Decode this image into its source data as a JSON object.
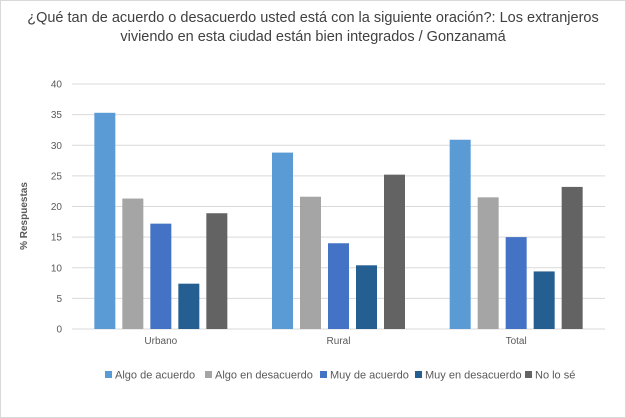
{
  "chart_data": {
    "type": "bar",
    "title": "¿Qué tan de acuerdo o desacuerdo usted está con la siguiente oración?: Los extranjeros viviendo en esta ciudad están bien integrados / Gonzanamá",
    "xlabel": "",
    "ylabel": "% Respuestas",
    "ylim": [
      0,
      40
    ],
    "yticks": [
      0,
      5,
      10,
      15,
      20,
      25,
      30,
      35,
      40
    ],
    "grid": true,
    "legend_position": "bottom",
    "categories": [
      "Urbano",
      "Rural",
      "Total"
    ],
    "series": [
      {
        "name": "Algo de acuerdo",
        "color": "#5b9bd5",
        "values": [
          35.3,
          28.8,
          30.9
        ]
      },
      {
        "name": "Algo en desacuerdo",
        "color": "#a5a5a5",
        "values": [
          21.3,
          21.6,
          21.5
        ]
      },
      {
        "name": "Muy de acuerdo",
        "color": "#4472c4",
        "values": [
          17.2,
          14.0,
          15.0
        ]
      },
      {
        "name": "Muy en desacuerdo",
        "color": "#255e91",
        "values": [
          7.4,
          10.4,
          9.4
        ]
      },
      {
        "name": "No lo sé",
        "color": "#636363",
        "values": [
          18.9,
          25.2,
          23.2
        ]
      }
    ]
  }
}
